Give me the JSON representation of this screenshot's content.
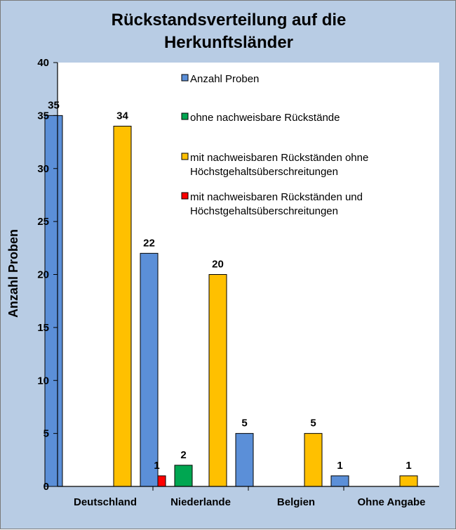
{
  "chart_data": {
    "type": "bar",
    "title_lines": [
      "Rückstandsverteilung auf die",
      "Herkunftsländer"
    ],
    "xlabel": "",
    "ylabel": "Anzahl Proben",
    "ylim": [
      0,
      40
    ],
    "yticks": [
      0,
      5,
      10,
      15,
      20,
      25,
      30,
      35,
      40
    ],
    "categories": [
      "Deutschland",
      "Niederlande",
      "Belgien",
      "Ohne Angabe"
    ],
    "series": [
      {
        "name": "Anzahl Proben",
        "color": "#5b8fd8",
        "values": [
          35,
          22,
          5,
          1
        ]
      },
      {
        "name": "ohne nachweisbare Rückstände",
        "color": "#00a651",
        "values": [
          0,
          2,
          0,
          0
        ]
      },
      {
        "name_lines": [
          "mit nachweisbaren Rückständen ohne",
          "Höchstgehaltsüberschreitungen"
        ],
        "color": "#ffc000",
        "values": [
          34,
          20,
          5,
          1
        ]
      },
      {
        "name_lines": [
          "mit nachweisbaren Rückständen und",
          "Höchstgehaltsüberschreitungen"
        ],
        "color": "#ff0000",
        "values": [
          1,
          0,
          0,
          0
        ]
      }
    ],
    "data_labels": true,
    "grid": false,
    "legend_position": "top-center-inside"
  }
}
